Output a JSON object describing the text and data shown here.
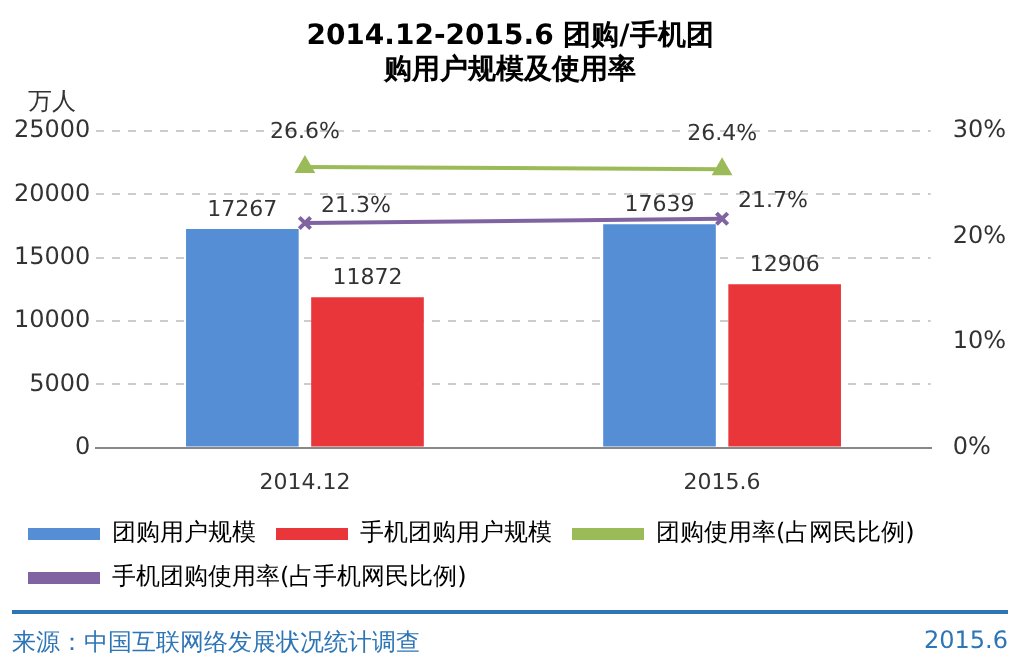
{
  "chart_data": {
    "type": "bar",
    "title": "2014.12-2015.6 团购/手机团购用户规模及使用率",
    "ylabel": "万人",
    "categories": [
      "2014.12",
      "2015.6"
    ],
    "series": [
      {
        "name": "团购用户规模",
        "color": "#558ed5",
        "values": [
          17267,
          17639
        ],
        "value_labels": [
          "17267",
          "17639"
        ]
      },
      {
        "name": "手机团购用户规模",
        "color": "#e8363a",
        "values": [
          11872,
          12906
        ],
        "value_labels": [
          "11872",
          "12906"
        ]
      },
      {
        "name": "团购使用率(占网民比例)",
        "type": "line",
        "axis": "y2",
        "marker": "triangle",
        "color": "#9bbb59",
        "values": [
          26.6,
          26.4
        ],
        "value_labels": [
          "26.6%",
          "26.4%"
        ]
      },
      {
        "name": "手机团购使用率(占手机网民比例)",
        "type": "line",
        "axis": "y2",
        "marker": "cross",
        "color": "#8064a2",
        "values": [
          21.3,
          21.7
        ],
        "value_labels": [
          "21.3%",
          "21.7%"
        ]
      }
    ],
    "ylim": [
      0,
      25000
    ],
    "yticks": [
      0,
      5000,
      10000,
      15000,
      20000,
      25000
    ],
    "y2lim": [
      0,
      30
    ],
    "y2ticks": [
      {
        "value": 0,
        "label": "0%"
      },
      {
        "value": 10,
        "label": "10%"
      },
      {
        "value": 20,
        "label": "20%"
      },
      {
        "value": 30,
        "label": "30%"
      }
    ],
    "grid": "y",
    "legend": "bottom",
    "annotations": [
      "来源：中国互联网络发展状况统计调查",
      "2015.6"
    ]
  }
}
